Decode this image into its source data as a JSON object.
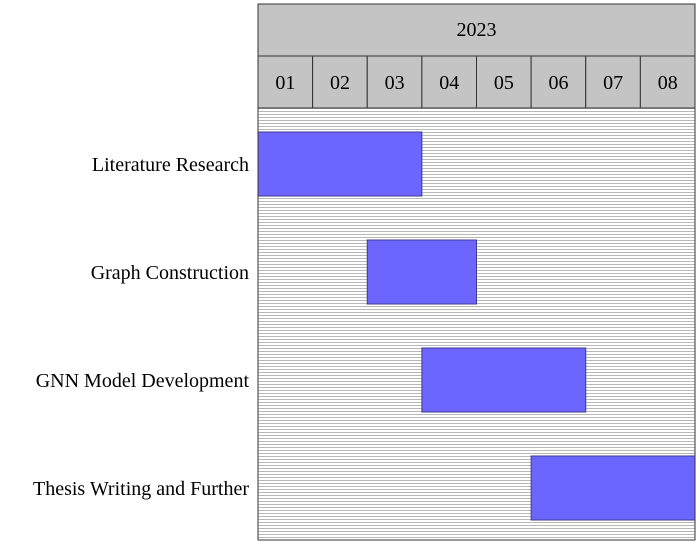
{
  "chart_data": {
    "type": "gantt",
    "year_label": "2023",
    "months": [
      "01",
      "02",
      "03",
      "04",
      "05",
      "06",
      "07",
      "08"
    ],
    "tasks": [
      {
        "name": "Literature Research",
        "start": "2023-01-01",
        "end": "2023-03-31"
      },
      {
        "name": "Graph Construction",
        "start": "2023-03-01",
        "end": "2023-04-30"
      },
      {
        "name": "GNN Model Development",
        "start": "2023-04-01",
        "end": "2023-06-30"
      },
      {
        "name": "Thesis Writing and Further",
        "start": "2023-06-01",
        "end": "2023-08-31"
      }
    ],
    "colors": {
      "bar_fill": "#6c66ff",
      "bar_stroke": "#3c3a8c",
      "header_fill": "#c4c4c4",
      "grid_line": "#9a9a9a",
      "border": "#333333"
    }
  }
}
